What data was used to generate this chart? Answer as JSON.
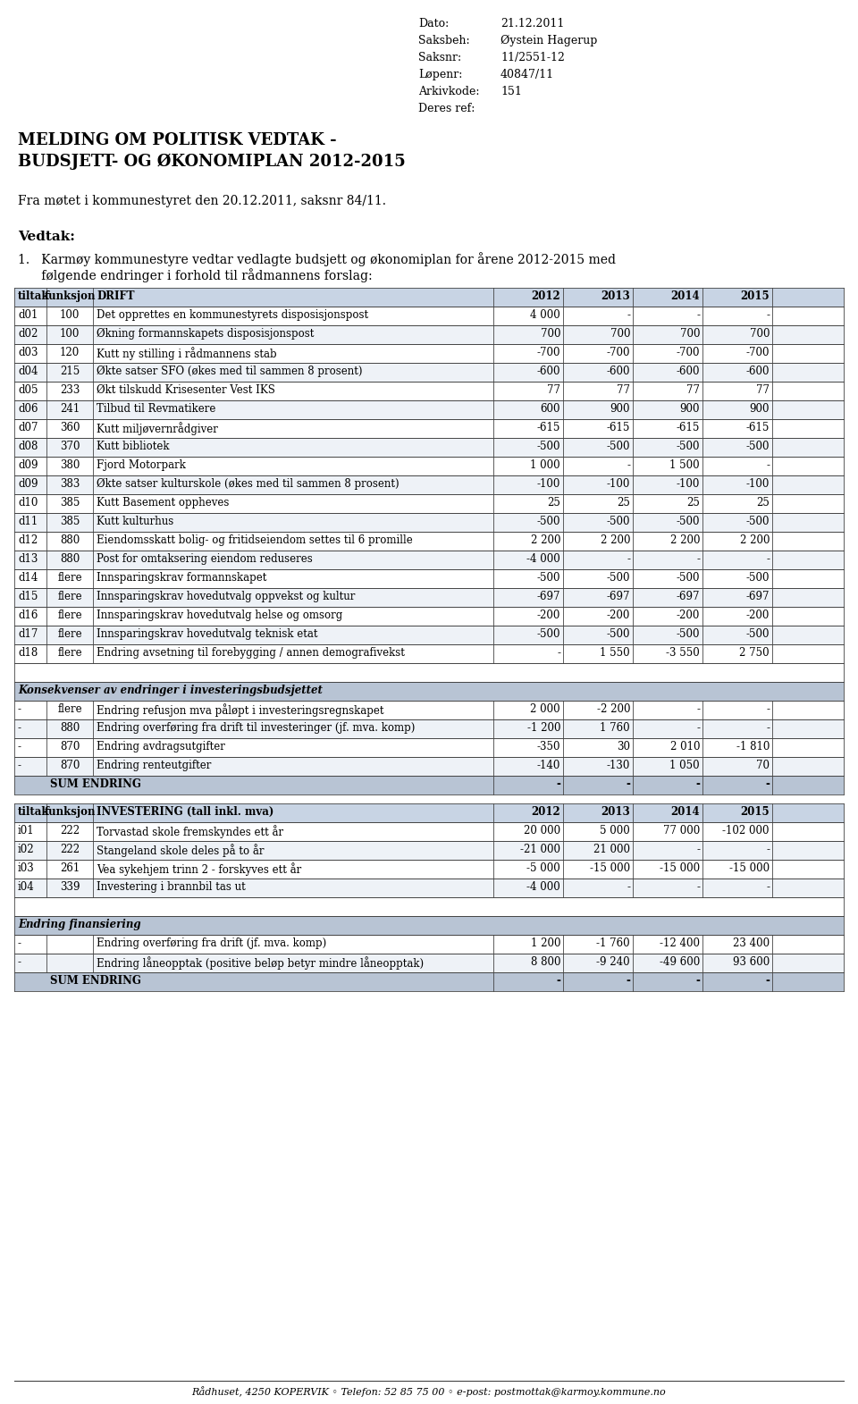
{
  "header_right": [
    [
      "Dato:",
      "21.12.2011"
    ],
    [
      "Saksbeh:",
      "Øystein Hagerup"
    ],
    [
      "Saksnr:",
      "11/2551-12"
    ],
    [
      "Løpenr:",
      "40847/11"
    ],
    [
      "Arkivkode:",
      "151"
    ],
    [
      "Deres ref:",
      ""
    ]
  ],
  "title_line1": "MELDING OM POLITISK VEDTAK -",
  "title_line2": "BUDSJETT- OG ØKONOMIPLAN 2012-2015",
  "from_meeting": "Fra møtet i kommunestyret den 20.12.2011, saksnr 84/11.",
  "vedtak_label": "Vedtak:",
  "vedtak_text1": "1.   Karmøy kommunestyre vedtar vedlagte budsjett og økonomiplan for årene 2012-2015 med",
  "vedtak_text2": "      følgende endringer i forhold til rådmannens forslag:",
  "drift_header": [
    "tiltak",
    "funksjon",
    "DRIFT",
    "2012",
    "2013",
    "2014",
    "2015"
  ],
  "drift_rows": [
    [
      "d01",
      "100",
      "Det opprettes en kommunestyrets disposisjonspost",
      "4 000",
      "-",
      "-",
      "-"
    ],
    [
      "d02",
      "100",
      "Økning formannskapets disposisjonspost",
      "700",
      "700",
      "700",
      "700"
    ],
    [
      "d03",
      "120",
      "Kutt ny stilling i rådmannens stab",
      "-700",
      "-700",
      "-700",
      "-700"
    ],
    [
      "d04",
      "215",
      "Økte satser SFO (økes med til sammen 8 prosent)",
      "-600",
      "-600",
      "-600",
      "-600"
    ],
    [
      "d05",
      "233",
      "Økt tilskudd Krisesenter Vest IKS",
      "77",
      "77",
      "77",
      "77"
    ],
    [
      "d06",
      "241",
      "Tilbud til Revmatikere",
      "600",
      "900",
      "900",
      "900"
    ],
    [
      "d07",
      "360",
      "Kutt miljøvernrådgiver",
      "-615",
      "-615",
      "-615",
      "-615"
    ],
    [
      "d08",
      "370",
      "Kutt bibliotek",
      "-500",
      "-500",
      "-500",
      "-500"
    ],
    [
      "d09",
      "380",
      "Fjord Motorpark",
      "1 000",
      "-",
      "1 500",
      "-"
    ],
    [
      "d09",
      "383",
      "Økte satser kulturskole (økes med til sammen 8 prosent)",
      "-100",
      "-100",
      "-100",
      "-100"
    ],
    [
      "d10",
      "385",
      "Kutt Basement oppheves",
      "25",
      "25",
      "25",
      "25"
    ],
    [
      "d11",
      "385",
      "Kutt kulturhus",
      "-500",
      "-500",
      "-500",
      "-500"
    ],
    [
      "d12",
      "880",
      "Eiendomsskatt bolig- og fritidseiendom settes til 6 promille",
      "2 200",
      "2 200",
      "2 200",
      "2 200"
    ],
    [
      "d13",
      "880",
      "Post for omtaksering eiendom reduseres",
      "-4 000",
      "-",
      "-",
      "-"
    ],
    [
      "d14",
      "flere",
      "Innsparingskrav formannskapet",
      "-500",
      "-500",
      "-500",
      "-500"
    ],
    [
      "d15",
      "flere",
      "Innsparingskrav hovedutvalg oppvekst og kultur",
      "-697",
      "-697",
      "-697",
      "-697"
    ],
    [
      "d16",
      "flere",
      "Innsparingskrav hovedutvalg helse og omsorg",
      "-200",
      "-200",
      "-200",
      "-200"
    ],
    [
      "d17",
      "flere",
      "Innsparingskrav hovedutvalg teknisk etat",
      "-500",
      "-500",
      "-500",
      "-500"
    ],
    [
      "d18",
      "flere",
      "Endring avsetning til forebygging / annen demografivekst",
      "-",
      "1 550",
      "-3 550",
      "2 750"
    ]
  ],
  "konsekvenser_label": "Konsekvenser av endringer i investeringsbudsjettet",
  "konsekvenser_rows": [
    [
      "-",
      "flere",
      "Endring refusjon mva påløpt i investeringsregnskapet",
      "2 000",
      "-2 200",
      "-",
      "-"
    ],
    [
      "-",
      "880",
      "Endring overføring fra drift til investeringer (jf. mva. komp)",
      "-1 200",
      "1 760",
      "-",
      "-"
    ],
    [
      "-",
      "870",
      "Endring avdragsutgifter",
      "-350",
      "30",
      "2 010",
      "-1 810"
    ],
    [
      "-",
      "870",
      "Endring renteutgifter",
      "-140",
      "-130",
      "1 050",
      "70"
    ]
  ],
  "drift_sum": [
    "-",
    "-",
    "-",
    "-"
  ],
  "invest_header": [
    "tiltak",
    "funksjon",
    "INVESTERING (tall inkl. mva)",
    "2012",
    "2013",
    "2014",
    "2015"
  ],
  "invest_rows": [
    [
      "i01",
      "222",
      "Torvastad skole fremskyndes ett år",
      "20 000",
      "5 000",
      "77 000",
      "-102 000"
    ],
    [
      "i02",
      "222",
      "Stangeland skole deles på to år",
      "-21 000",
      "21 000",
      "-",
      "-"
    ],
    [
      "i03",
      "261",
      "Vea sykehjem trinn 2 - forskyves ett år",
      "-5 000",
      "-15 000",
      "-15 000",
      "-15 000"
    ],
    [
      "i04",
      "339",
      "Investering i brannbil tas ut",
      "-4 000",
      "-",
      "-",
      "-"
    ]
  ],
  "endring_fin_label": "Endring finansiering",
  "endring_fin_rows": [
    [
      "-",
      "",
      "Endring overføring fra drift (jf. mva. komp)",
      "1 200",
      "-1 760",
      "-12 400",
      "23 400"
    ],
    [
      "-",
      "",
      "Endring låneopptak (positive beløp betyr mindre låneopptak)",
      "8 800",
      "-9 240",
      "-49 600",
      "93 600"
    ]
  ],
  "invest_sum": [
    "-",
    "-",
    "-",
    "-"
  ],
  "footer": "Rådhuset, 4250 KOPERVIK ◦ Telefon: 52 85 75 00 ◦ e-post: postmottak@karmoy.kommune.no",
  "bg_color": "#ffffff",
  "header_bg": "#c8d4e4",
  "alt_row_bg": "#eef2f7",
  "section_bg": "#b8c4d4",
  "sum_bg": "#b8c4d4",
  "border_color": "#555555",
  "font_family": "DejaVu Serif"
}
